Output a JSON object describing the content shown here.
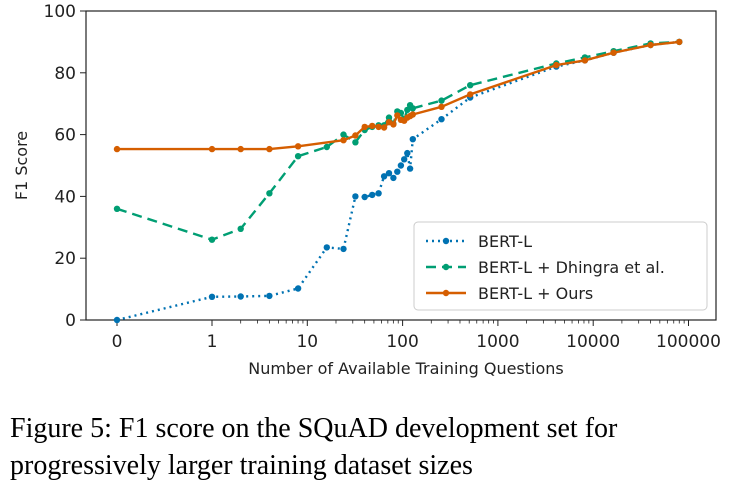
{
  "caption": "Figure 5: F1 score on the SQuAD development set for progressively larger training dataset sizes",
  "chart_data": {
    "type": "line",
    "xlabel": "Number of Available Training Questions",
    "ylabel": "F1 Score",
    "xscale": "symlog",
    "xticks": [
      0,
      1,
      10,
      100,
      1000,
      10000,
      100000
    ],
    "xtick_labels": [
      "0",
      "1",
      "10",
      "100",
      "1000",
      "10000",
      "100000"
    ],
    "yticks": [
      0,
      20,
      40,
      60,
      80,
      100
    ],
    "ylim": [
      0,
      100
    ],
    "legend_position": "lower-right",
    "series": [
      {
        "name": "BERT-L",
        "color": "#0072B2",
        "style": "dotted",
        "points": [
          [
            0,
            0
          ],
          [
            1,
            7.5
          ],
          [
            2,
            7.6
          ],
          [
            4,
            7.8
          ],
          [
            8,
            10.2
          ],
          [
            16,
            23.5
          ],
          [
            24,
            23
          ],
          [
            32,
            40
          ],
          [
            40,
            39.8
          ],
          [
            48,
            40.5
          ],
          [
            56,
            41
          ],
          [
            64,
            46.5
          ],
          [
            72,
            47.5
          ],
          [
            80,
            46
          ],
          [
            88,
            48
          ],
          [
            96,
            50
          ],
          [
            104,
            52
          ],
          [
            112,
            54
          ],
          [
            120,
            49
          ],
          [
            128,
            58.5
          ],
          [
            256,
            65
          ],
          [
            512,
            72
          ],
          [
            4096,
            82
          ],
          [
            8192,
            84
          ],
          [
            16384,
            86.5
          ],
          [
            40000,
            89
          ],
          [
            80000,
            90
          ]
        ]
      },
      {
        "name": "BERT-L + Dhingra et al.",
        "color": "#009E73",
        "style": "dashed",
        "points": [
          [
            0,
            36
          ],
          [
            1,
            26
          ],
          [
            2,
            29.5
          ],
          [
            4,
            41
          ],
          [
            8,
            53
          ],
          [
            16,
            56
          ],
          [
            24,
            60
          ],
          [
            32,
            57.5
          ],
          [
            40,
            61.5
          ],
          [
            48,
            62.5
          ],
          [
            56,
            63
          ],
          [
            64,
            63
          ],
          [
            72,
            65.5
          ],
          [
            80,
            63.5
          ],
          [
            88,
            67.5
          ],
          [
            96,
            67
          ],
          [
            104,
            65
          ],
          [
            112,
            68
          ],
          [
            120,
            69.5
          ],
          [
            128,
            68.5
          ],
          [
            256,
            71
          ],
          [
            512,
            76
          ],
          [
            4096,
            83
          ],
          [
            8192,
            85
          ],
          [
            16384,
            87
          ],
          [
            40000,
            89.5
          ],
          [
            80000,
            90
          ]
        ]
      },
      {
        "name": "BERT-L + Ours",
        "color": "#D55E00",
        "style": "solid",
        "points": [
          [
            0,
            55.3
          ],
          [
            1,
            55.3
          ],
          [
            2,
            55.3
          ],
          [
            4,
            55.3
          ],
          [
            8,
            56.2
          ],
          [
            24,
            58.2
          ],
          [
            32,
            59.7
          ],
          [
            40,
            62.5
          ],
          [
            48,
            62.8
          ],
          [
            56,
            62.5
          ],
          [
            64,
            62.3
          ],
          [
            72,
            64
          ],
          [
            80,
            63.3
          ],
          [
            88,
            66.2
          ],
          [
            96,
            64.8
          ],
          [
            104,
            64.5
          ],
          [
            112,
            65.5
          ],
          [
            120,
            66
          ],
          [
            128,
            66.5
          ],
          [
            256,
            69
          ],
          [
            512,
            73
          ],
          [
            4096,
            82.5
          ],
          [
            8192,
            84
          ],
          [
            16384,
            86.5
          ],
          [
            40000,
            89
          ],
          [
            80000,
            90
          ]
        ]
      }
    ]
  }
}
